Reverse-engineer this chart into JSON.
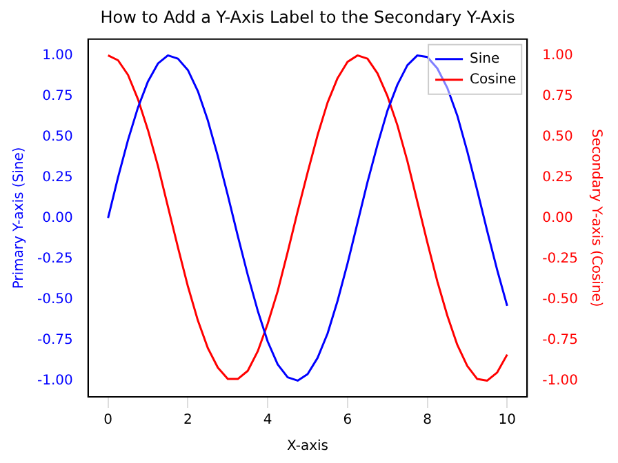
{
  "chart_data": {
    "type": "line",
    "title": "How to Add a Y-Axis Label to the Secondary Y-Axis",
    "xlabel": "X-axis",
    "ylabel": "Primary Y-axis (Sine)",
    "y2label": "Secondary Y-axis (Cosine)",
    "x": [
      0,
      0.25,
      0.5,
      0.75,
      1,
      1.25,
      1.5,
      1.75,
      2,
      2.25,
      2.5,
      2.75,
      3,
      3.25,
      3.5,
      3.75,
      4,
      4.25,
      4.5,
      4.75,
      5,
      5.25,
      5.5,
      5.75,
      6,
      6.25,
      6.5,
      6.75,
      7,
      7.25,
      7.5,
      7.75,
      8,
      8.25,
      8.5,
      8.75,
      9,
      9.25,
      9.5,
      9.75,
      10
    ],
    "series": [
      {
        "name": "Sine",
        "color": "#0000ff",
        "values": [
          0,
          0.25,
          0.48,
          0.68,
          0.84,
          0.95,
          1,
          0.98,
          0.91,
          0.78,
          0.6,
          0.38,
          0.14,
          -0.11,
          -0.35,
          -0.57,
          -0.76,
          -0.9,
          -0.98,
          -1,
          -0.96,
          -0.86,
          -0.71,
          -0.51,
          -0.28,
          -0.03,
          0.22,
          0.45,
          0.66,
          0.82,
          0.94,
          1,
          0.99,
          0.92,
          0.8,
          0.63,
          0.41,
          0.17,
          -0.08,
          -0.32,
          -0.54
        ]
      },
      {
        "name": "Cosine",
        "color": "#ff0000",
        "axis": "y2",
        "values": [
          1,
          0.97,
          0.88,
          0.73,
          0.54,
          0.32,
          0.07,
          -0.18,
          -0.42,
          -0.63,
          -0.8,
          -0.92,
          -0.99,
          -0.99,
          -0.94,
          -0.82,
          -0.65,
          -0.45,
          -0.21,
          0.04,
          0.28,
          0.51,
          0.71,
          0.86,
          0.96,
          1,
          0.98,
          0.89,
          0.75,
          0.57,
          0.35,
          0.1,
          -0.15,
          -0.39,
          -0.6,
          -0.78,
          -0.91,
          -0.99,
          -1,
          -0.95,
          -0.84
        ]
      }
    ],
    "xlim": [
      -0.5,
      10.5
    ],
    "xticks": [
      0,
      2,
      4,
      6,
      8,
      10
    ],
    "ylim": [
      -1.1,
      1.1
    ],
    "yticks": [
      {
        "value": -1,
        "label": "-1.00"
      },
      {
        "value": -0.75,
        "label": "-0.75"
      },
      {
        "value": -0.5,
        "label": "-0.50"
      },
      {
        "value": -0.25,
        "label": "-0.25"
      },
      {
        "value": 0,
        "label": "0.00"
      },
      {
        "value": 0.25,
        "label": "0.25"
      },
      {
        "value": 0.5,
        "label": "0.50"
      },
      {
        "value": 0.75,
        "label": "0.75"
      },
      {
        "value": 1,
        "label": "1.00"
      }
    ],
    "y2lim": [
      -1.1,
      1.1
    ],
    "y2ticks": [
      {
        "value": -1,
        "label": "-1.00"
      },
      {
        "value": -0.75,
        "label": "-0.75"
      },
      {
        "value": -0.5,
        "label": "-0.50"
      },
      {
        "value": -0.25,
        "label": "-0.25"
      },
      {
        "value": 0,
        "label": "0.00"
      },
      {
        "value": 0.25,
        "label": "0.25"
      },
      {
        "value": 0.5,
        "label": "0.50"
      },
      {
        "value": 0.75,
        "label": "0.75"
      },
      {
        "value": 1,
        "label": "1.00"
      }
    ],
    "legend": "top right",
    "grid": false,
    "marker": "none",
    "line_style": "solid"
  }
}
